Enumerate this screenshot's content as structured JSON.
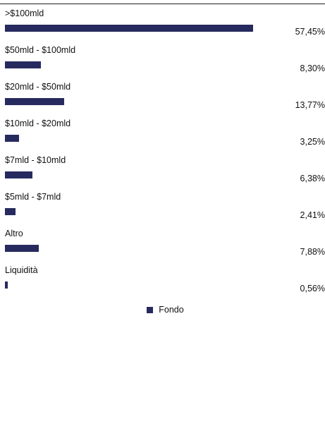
{
  "chart_data": {
    "type": "bar",
    "orientation": "horizontal",
    "categories": [
      ">$100mld",
      "$50mld - $100mld",
      "$20mld - $50mld",
      "$10mld - $20mld",
      "$7mld - $10mld",
      "$5mld - $7mld",
      "Altro",
      "Liquidità"
    ],
    "values": [
      57.45,
      8.3,
      13.77,
      3.25,
      6.38,
      2.41,
      7.88,
      0.56
    ],
    "value_labels": [
      "57,45%",
      "8,30%",
      "13,77%",
      "3,25%",
      "6,38%",
      "2,41%",
      "7,88%",
      "0,56%"
    ],
    "series": [
      {
        "name": "Fondo",
        "values": [
          57.45,
          8.3,
          13.77,
          3.25,
          6.38,
          2.41,
          7.88,
          0.56
        ]
      }
    ],
    "xlim": [
      0,
      57.45
    ],
    "grid": false,
    "legend": "bottom-center",
    "bar_color": "#262a5e"
  },
  "legend": {
    "label": "Fondo"
  }
}
